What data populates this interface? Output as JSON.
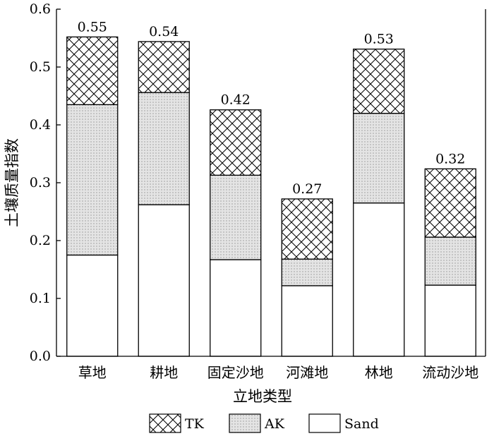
{
  "chart_data": {
    "type": "bar",
    "stacked": true,
    "xlabel": "立地类型",
    "ylabel": "土壤质量指数",
    "ylim": [
      0,
      0.6
    ],
    "yticks": [
      "0.0",
      "0.1",
      "0.2",
      "0.3",
      "0.4",
      "0.5",
      "0.6"
    ],
    "ytick_values": [
      0,
      0.1,
      0.2,
      0.3,
      0.4,
      0.5,
      0.6
    ],
    "categories": [
      "草地",
      "耕地",
      "固定沙地",
      "河滩地",
      "林地",
      "流动沙地"
    ],
    "series": [
      {
        "name": "Sand",
        "pattern": "none",
        "values": [
          0.175,
          0.262,
          0.167,
          0.122,
          0.265,
          0.123
        ]
      },
      {
        "name": "AK",
        "pattern": "dots",
        "values": [
          0.26,
          0.194,
          0.146,
          0.046,
          0.155,
          0.083
        ]
      },
      {
        "name": "TK",
        "pattern": "crosshatch",
        "values": [
          0.117,
          0.088,
          0.113,
          0.104,
          0.111,
          0.118
        ]
      }
    ],
    "totals": [
      "0.55",
      "0.54",
      "0.42",
      "0.27",
      "0.53",
      "0.32"
    ],
    "legend": {
      "placement": "bottom",
      "entries": [
        "TK",
        "AK",
        "Sand"
      ]
    },
    "grid": false
  }
}
